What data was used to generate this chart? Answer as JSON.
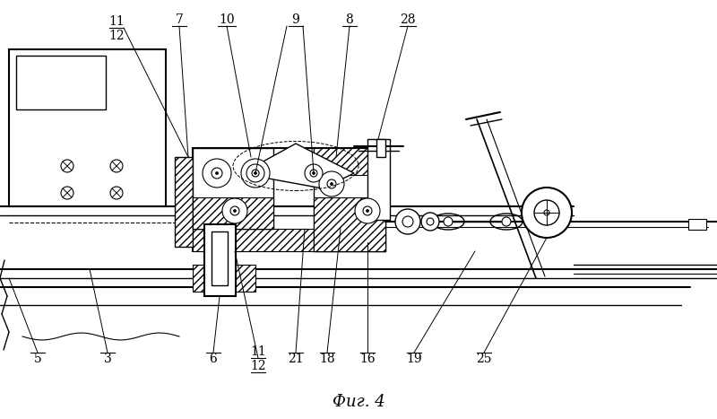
{
  "title": "Фиг. 4",
  "bg_color": "#ffffff",
  "line_color": "#000000",
  "figsize": [
    8.0,
    4.67
  ],
  "dpi": 100
}
